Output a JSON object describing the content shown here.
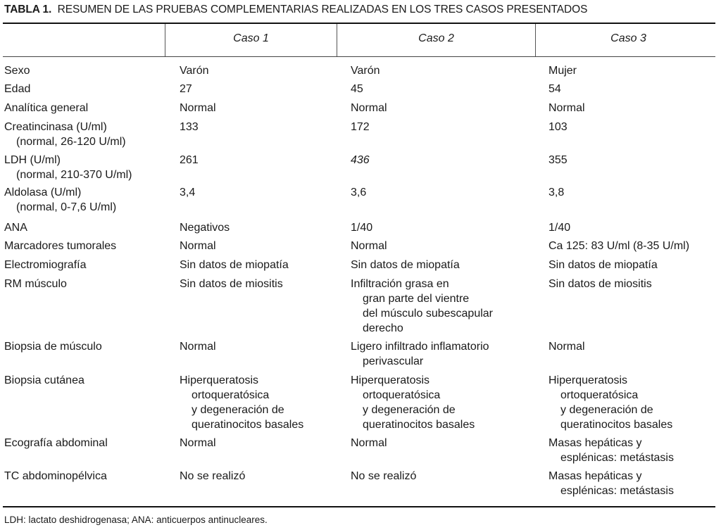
{
  "title": {
    "label": "TABLA 1.",
    "text": "RESUMEN DE LAS PRUEBAS COMPLEMENTARIAS REALIZADAS EN LOS TRES CASOS PRESENTADOS"
  },
  "columns": [
    "",
    "Caso 1",
    "Caso 2",
    "Caso 3"
  ],
  "rows": [
    {
      "label": [
        "Sexo"
      ],
      "c1": [
        "Varón"
      ],
      "c2": [
        "Varón"
      ],
      "c3": [
        "Mujer"
      ]
    },
    {
      "label": [
        "Edad"
      ],
      "c1": [
        "27"
      ],
      "c2": [
        "45"
      ],
      "c3": [
        "54"
      ]
    },
    {
      "label": [
        "Analítica general"
      ],
      "c1": [
        "Normal"
      ],
      "c2": [
        "Normal"
      ],
      "c3": [
        "Normal"
      ]
    },
    {
      "label": [
        "Creatincinasa (U/ml)",
        "(normal, 26-120 U/ml)"
      ],
      "c1": [
        "133"
      ],
      "c2": [
        "172"
      ],
      "c3": [
        "103"
      ]
    },
    {
      "label": [
        "LDH (U/ml)",
        "(normal, 210-370 U/ml)"
      ],
      "c1": [
        "261"
      ],
      "c2": [
        "436"
      ],
      "c2_italic": true,
      "c3": [
        "355"
      ]
    },
    {
      "label": [
        "Aldolasa (U/ml)",
        "(normal, 0-7,6 U/ml)"
      ],
      "c1": [
        "3,4"
      ],
      "c2": [
        "3,6"
      ],
      "c3": [
        "3,8"
      ]
    },
    {
      "label": [
        "ANA"
      ],
      "c1": [
        "Negativos"
      ],
      "c2": [
        "1/40"
      ],
      "c3": [
        "1/40"
      ]
    },
    {
      "label": [
        "Marcadores tumorales"
      ],
      "c1": [
        "Normal"
      ],
      "c2": [
        "Normal"
      ],
      "c3": [
        "Ca 125: 83 U/ml (8-35 U/ml)"
      ]
    },
    {
      "label": [
        "Electromiografía"
      ],
      "c1": [
        "Sin datos de miopatía"
      ],
      "c2": [
        "Sin datos de miopatía"
      ],
      "c3": [
        "Sin datos de miopatía"
      ]
    },
    {
      "label": [
        "RM músculo"
      ],
      "c1": [
        "Sin datos de miositis"
      ],
      "c2": [
        "Infiltración grasa en",
        "gran parte del vientre",
        "del músculo subescapular",
        "derecho"
      ],
      "c3": [
        "Sin datos de miositis"
      ]
    },
    {
      "label": [
        "Biopsia de músculo"
      ],
      "c1": [
        "Normal"
      ],
      "c2": [
        "Ligero infiltrado inflamatorio",
        "perivascular"
      ],
      "c3": [
        "Normal"
      ]
    },
    {
      "label": [
        "Biopsia cutánea"
      ],
      "c1": [
        "Hiperqueratosis",
        "ortoqueratósica",
        "y degeneración de",
        "queratinocitos basales"
      ],
      "c2": [
        "Hiperqueratosis",
        "ortoqueratósica",
        "y degeneración de",
        "queratinocitos basales"
      ],
      "c3": [
        "Hiperqueratosis",
        "ortoqueratósica",
        "y degeneración de",
        "queratinocitos basales"
      ]
    },
    {
      "label": [
        "Ecografía abdominal"
      ],
      "c1": [
        "Normal"
      ],
      "c2": [
        "Normal"
      ],
      "c3": [
        "Masas hepáticas y",
        "esplénicas: metástasis"
      ]
    },
    {
      "label": [
        "TC abdominopélvica"
      ],
      "c1": [
        "No se realizó"
      ],
      "c2": [
        "No se realizó"
      ],
      "c3": [
        "Masas hepáticas y",
        "esplénicas: metástasis"
      ]
    }
  ],
  "footnote": "LDH: lactato deshidrogenasa; ANA: anticuerpos antinucleares."
}
